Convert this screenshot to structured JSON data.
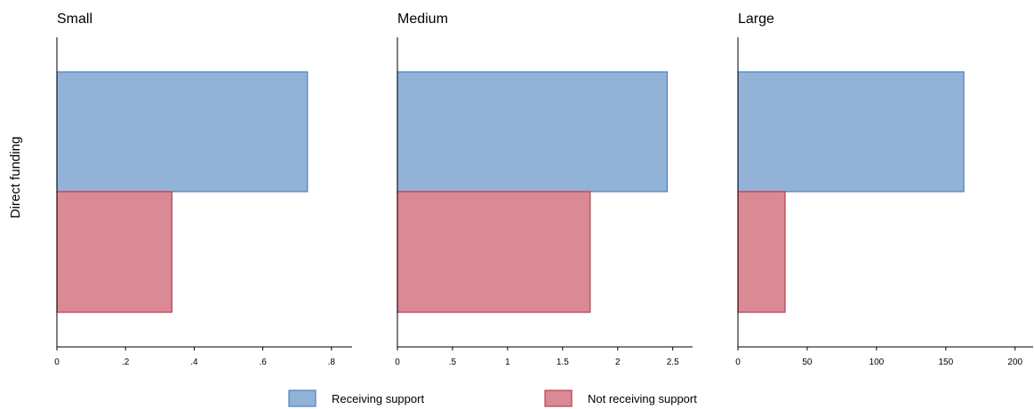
{
  "ylabel": "Direct funding",
  "legend": {
    "items": [
      {
        "label": "Receiving support",
        "fill": "#92b3d7",
        "stroke": "#4a7fc1"
      },
      {
        "label": "Not receiving support",
        "fill": "#d98a94",
        "stroke": "#c23b4e"
      }
    ]
  },
  "chart_data": [
    {
      "type": "bar",
      "orientation": "horizontal",
      "title": "Small",
      "xlim": [
        0,
        0.86
      ],
      "ticks": [
        0,
        0.2,
        0.4,
        0.6,
        0.8
      ],
      "tick_labels": [
        "0",
        ".2",
        ".4",
        ".6",
        ".8"
      ],
      "series": [
        {
          "name": "Receiving support",
          "values": [
            0.73
          ]
        },
        {
          "name": "Not receiving support",
          "values": [
            0.335
          ]
        }
      ]
    },
    {
      "type": "bar",
      "orientation": "horizontal",
      "title": "Medium",
      "xlim": [
        0,
        2.68
      ],
      "ticks": [
        0,
        0.5,
        1,
        1.5,
        2,
        2.5
      ],
      "tick_labels": [
        "0",
        ".5",
        "1",
        "1.5",
        "2",
        "2.5"
      ],
      "series": [
        {
          "name": "Receiving support",
          "values": [
            2.45
          ]
        },
        {
          "name": "Not receiving support",
          "values": [
            1.75
          ]
        }
      ]
    },
    {
      "type": "bar",
      "orientation": "horizontal",
      "title": "Large",
      "xlim": [
        0,
        213
      ],
      "ticks": [
        0,
        50,
        100,
        150,
        200
      ],
      "tick_labels": [
        "0",
        "50",
        "100",
        "150",
        "200"
      ],
      "series": [
        {
          "name": "Receiving support",
          "values": [
            163
          ]
        },
        {
          "name": "Not receiving support",
          "values": [
            34
          ]
        }
      ]
    }
  ]
}
